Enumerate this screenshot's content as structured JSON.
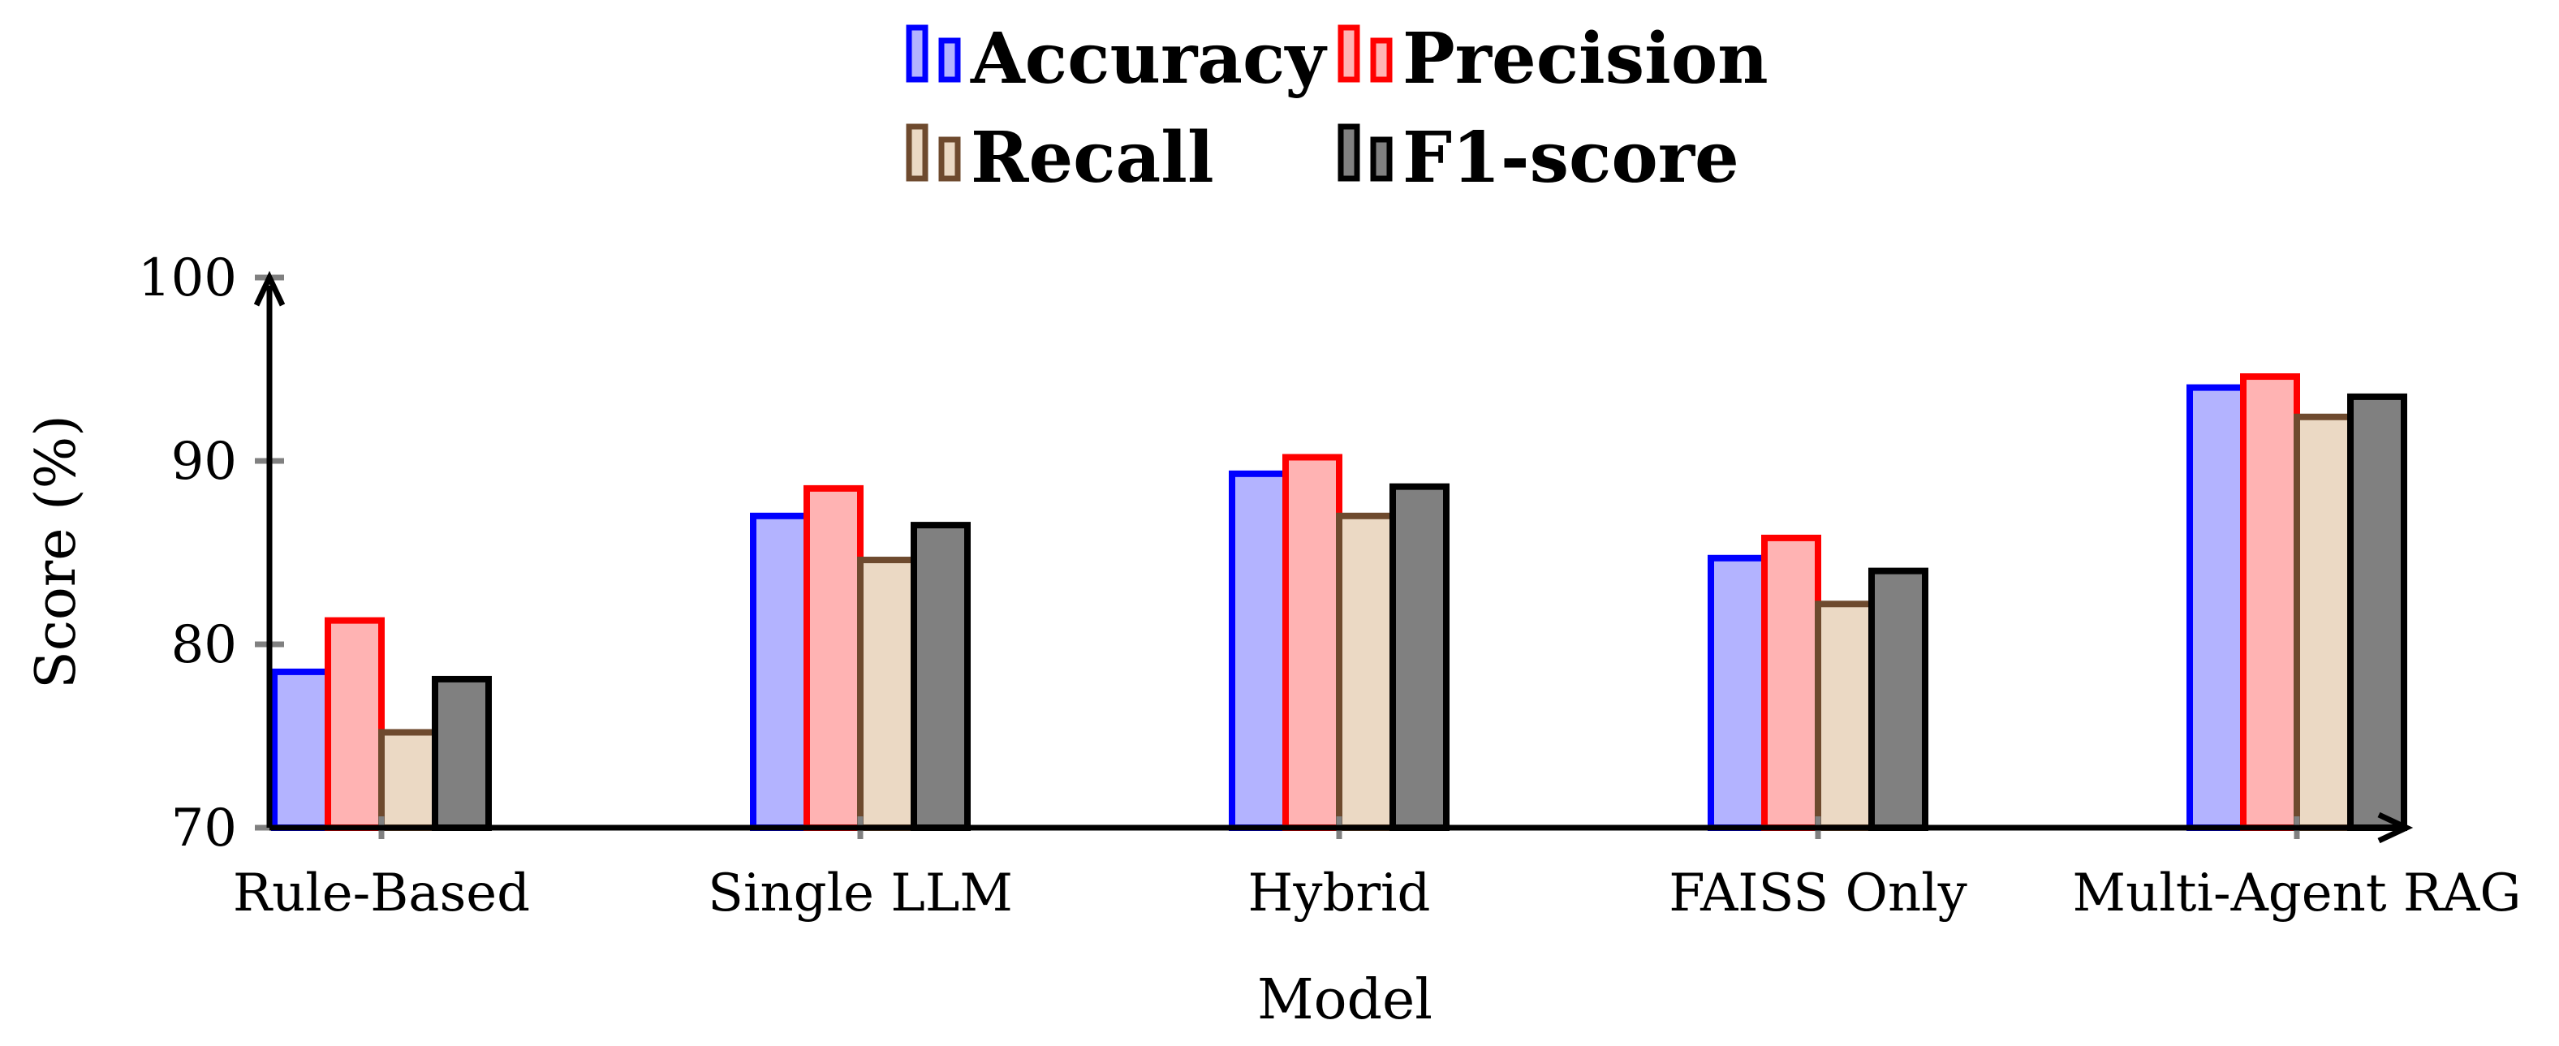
{
  "chart_data": {
    "type": "bar",
    "title": "",
    "xlabel": "Model",
    "ylabel": "Score (%)",
    "ylim": [
      70,
      100
    ],
    "yticks": [
      70,
      80,
      90,
      100
    ],
    "categories": [
      "Rule-Based",
      "Single LLM",
      "Hybrid",
      "FAISS Only",
      "Multi-Agent RAG"
    ],
    "series": [
      {
        "name": "Accuracy",
        "values": [
          78.5,
          87.0,
          89.3,
          84.7,
          94.0
        ],
        "fill": "#b3b3ff",
        "stroke": "#0000ff"
      },
      {
        "name": "Precision",
        "values": [
          81.3,
          88.5,
          90.2,
          85.8,
          94.6
        ],
        "fill": "#ffb3b3",
        "stroke": "#ff0000"
      },
      {
        "name": "Recall",
        "values": [
          75.2,
          84.6,
          87.0,
          82.2,
          92.4
        ],
        "fill": "#ebd9c4",
        "stroke": "#6e4a2e"
      },
      {
        "name": "F1-score",
        "values": [
          78.1,
          86.5,
          88.6,
          84.0,
          93.5
        ],
        "fill": "#808080",
        "stroke": "#000000"
      }
    ],
    "legend_position": "top-center",
    "grid": false
  }
}
